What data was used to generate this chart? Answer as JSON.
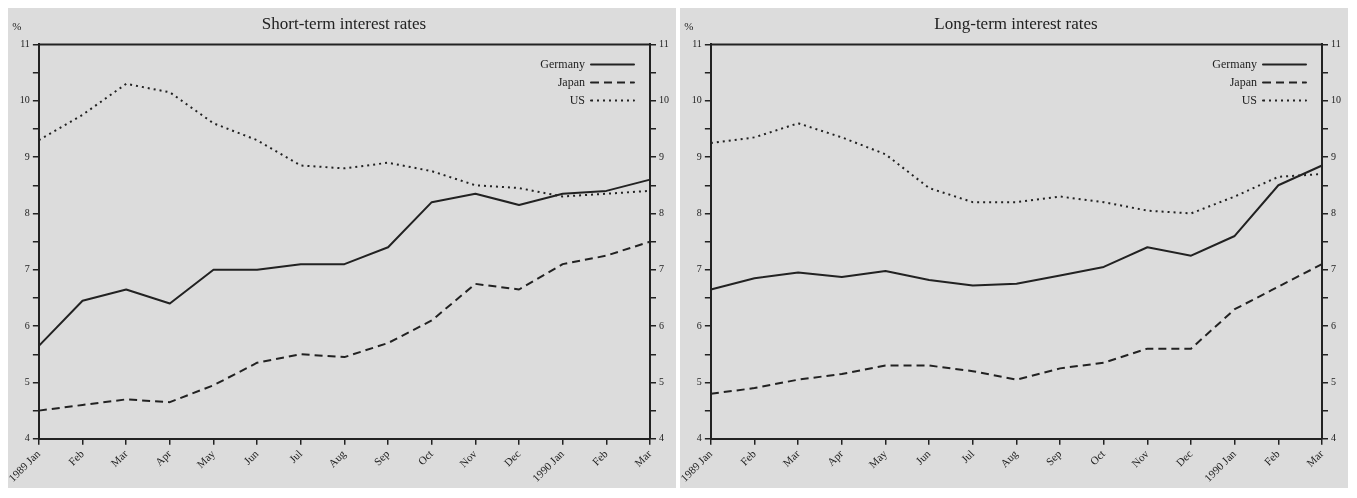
{
  "chart_data": [
    {
      "type": "line",
      "title": "Short-term interest rates",
      "ylabel": "%",
      "categories": [
        "1989 Jan",
        "Feb",
        "Mar",
        "Apr",
        "May",
        "Jun",
        "Jul",
        "Aug",
        "Sep",
        "Oct",
        "Nov",
        "Dec",
        "1990 Jan",
        "Feb",
        "Mar"
      ],
      "series": [
        {
          "name": "Germany",
          "color": "#222222",
          "line_style": "solid",
          "values": [
            5.65,
            6.45,
            6.65,
            6.4,
            7.0,
            7.0,
            7.1,
            7.1,
            7.4,
            8.2,
            8.35,
            8.15,
            8.35,
            8.4,
            8.6
          ]
        },
        {
          "name": "Japan",
          "color": "#222222",
          "line_style": "dashed",
          "values": [
            4.5,
            4.6,
            4.7,
            4.65,
            4.95,
            5.35,
            5.5,
            5.45,
            5.7,
            6.1,
            6.75,
            6.65,
            7.1,
            7.25,
            7.5
          ]
        },
        {
          "name": "US",
          "color": "#222222",
          "line_style": "dotted",
          "values": [
            9.3,
            9.75,
            10.3,
            10.15,
            9.6,
            9.3,
            8.85,
            8.8,
            8.9,
            8.75,
            8.5,
            8.45,
            8.3,
            8.35,
            8.4
          ]
        }
      ],
      "ylim": [
        4,
        11
      ],
      "yticks": [
        4,
        {
          "value": 4.5,
          "label": null
        },
        5,
        {
          "value": 5.5,
          "label": null
        },
        6,
        {
          "value": 6.5,
          "label": null
        },
        7,
        {
          "value": 7.5,
          "label": null
        },
        8,
        {
          "value": 8.5,
          "label": null
        },
        9,
        {
          "value": 9.5,
          "label": null
        },
        10,
        {
          "value": 10.5,
          "label": null
        },
        11
      ],
      "y2lim": [
        4,
        11
      ],
      "y2ticks": [
        4,
        {
          "value": 4.5,
          "label": null
        },
        5,
        {
          "value": 5.5,
          "label": null
        },
        6,
        {
          "value": 6.5,
          "label": null
        },
        7,
        {
          "value": 7.5,
          "label": null
        },
        8,
        {
          "value": 8.5,
          "label": null
        },
        9,
        {
          "value": 9.5,
          "label": null
        },
        10,
        {
          "value": 10.5,
          "label": null
        },
        11
      ],
      "grid": false,
      "legend": "top right",
      "marker": "none"
    },
    {
      "type": "line",
      "title": "Long-term interest rates",
      "ylabel": "%",
      "categories": [
        "1989 Jan",
        "Feb",
        "Mar",
        "Apr",
        "May",
        "Jun",
        "Jul",
        "Aug",
        "Sep",
        "Oct",
        "Nov",
        "Dec",
        "1990 Jan",
        "Feb",
        "Mar"
      ],
      "series": [
        {
          "name": "Germany",
          "color": "#222222",
          "line_style": "solid",
          "values": [
            6.65,
            6.85,
            6.95,
            6.87,
            6.98,
            6.82,
            6.72,
            6.75,
            6.9,
            7.05,
            7.4,
            7.25,
            7.6,
            8.5,
            8.85
          ]
        },
        {
          "name": "Japan",
          "color": "#222222",
          "line_style": "dashed",
          "values": [
            4.8,
            4.9,
            5.05,
            5.15,
            5.3,
            5.3,
            5.2,
            5.05,
            5.25,
            5.35,
            5.6,
            5.6,
            6.3,
            6.7,
            7.1
          ]
        },
        {
          "name": "US",
          "color": "#222222",
          "line_style": "dotted",
          "values": [
            9.25,
            9.35,
            9.6,
            9.35,
            9.05,
            8.45,
            8.2,
            8.2,
            8.3,
            8.2,
            8.05,
            8.0,
            8.3,
            8.65,
            8.7
          ]
        }
      ],
      "ylim": [
        4,
        11
      ],
      "yticks": [
        4,
        {
          "value": 4.5,
          "label": null
        },
        5,
        {
          "value": 5.5,
          "label": null
        },
        6,
        {
          "value": 6.5,
          "label": null
        },
        7,
        {
          "value": 7.5,
          "label": null
        },
        8,
        {
          "value": 8.5,
          "label": null
        },
        9,
        {
          "value": 9.5,
          "label": null
        },
        10,
        {
          "value": 10.5,
          "label": null
        },
        11
      ],
      "y2lim": [
        4,
        11
      ],
      "y2ticks": [
        4,
        {
          "value": 4.5,
          "label": null
        },
        5,
        {
          "value": 5.5,
          "label": null
        },
        6,
        {
          "value": 6.5,
          "label": null
        },
        7,
        {
          "value": 7.5,
          "label": null
        },
        8,
        {
          "value": 8.5,
          "label": null
        },
        9,
        {
          "value": 9.5,
          "label": null
        },
        10,
        {
          "value": 10.5,
          "label": null
        },
        11
      ],
      "grid": false,
      "legend": "top right",
      "marker": "none"
    }
  ]
}
